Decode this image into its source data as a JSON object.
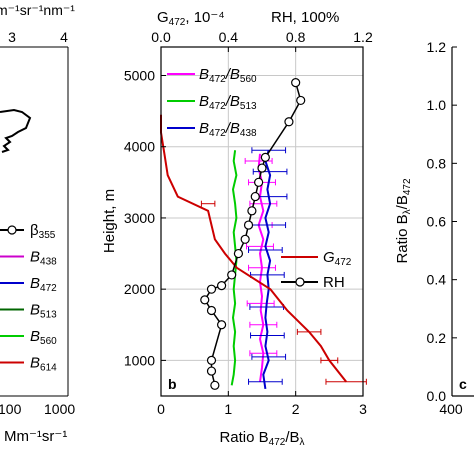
{
  "chart_data": [
    {
      "panel": "left-partial",
      "type": "line",
      "top_axis": {
        "label": "m⁻¹sr⁻¹nm⁻¹",
        "ticks": [
          "3",
          "4"
        ]
      },
      "bottom_axis": {
        "label": "Mm⁻¹sr⁻¹",
        "ticks": [
          "100",
          "1000"
        ]
      },
      "legend": [
        {
          "label": "β",
          "sub": "355",
          "color": "#000000",
          "marker": "circle"
        },
        {
          "label": "B",
          "sub": "438",
          "color": "#cc00cc"
        },
        {
          "label": "B",
          "sub": "472",
          "color": "#0000cc"
        },
        {
          "label": "B",
          "sub": "513",
          "color": "#006600"
        },
        {
          "label": "B",
          "sub": "560",
          "color": "#00cc00"
        },
        {
          "label": "B",
          "sub": "614",
          "color": "#cc0000"
        }
      ]
    },
    {
      "panel": "b",
      "type": "line",
      "panel_label": "b",
      "ylabel": "Height, m",
      "xlabel": {
        "main": "Ratio B",
        "sub1": "472",
        "mid": "/B",
        "sub2": "λ"
      },
      "top_label_left": {
        "main": "G",
        "sub": "472",
        "rest": ", 10⁻⁴"
      },
      "top_label_right": "RH, 100%",
      "xlim": [
        0,
        3
      ],
      "ylim": [
        500,
        5400
      ],
      "xticks": [
        "0",
        "1",
        "2",
        "3"
      ],
      "yticks": [
        "1000",
        "2000",
        "3000",
        "4000",
        "5000"
      ],
      "top_xlim": [
        0,
        1.2
      ],
      "top_xticks": [
        "0.0",
        "0.4",
        "0.8",
        "1.2"
      ],
      "grid": true,
      "legend_top": [
        {
          "label": "B",
          "sub1": "472",
          "mid": "/B",
          "sub2": "560",
          "color": "#ff00ff"
        },
        {
          "label": "B",
          "sub1": "472",
          "mid": "/B",
          "sub2": "513",
          "color": "#00cc00"
        },
        {
          "label": "B",
          "sub1": "472",
          "mid": "/B",
          "sub2": "438",
          "color": "#0000cc"
        }
      ],
      "legend_bottom": [
        {
          "label": "G",
          "sub": "472",
          "color": "#cc0000"
        },
        {
          "label": "RH",
          "color": "#000000",
          "marker": "circle"
        }
      ],
      "series": [
        {
          "name": "B472/B560",
          "color": "#ff00ff",
          "axis": "bottom",
          "points": [
            [
              1.47,
              700
            ],
            [
              1.5,
              900
            ],
            [
              1.52,
              1100
            ],
            [
              1.47,
              1300
            ],
            [
              1.52,
              1500
            ],
            [
              1.48,
              1700
            ],
            [
              1.5,
              1900
            ],
            [
              1.47,
              2100
            ],
            [
              1.5,
              2300
            ],
            [
              1.47,
              2500
            ],
            [
              1.52,
              2700
            ],
            [
              1.45,
              2900
            ],
            [
              1.52,
              3100
            ],
            [
              1.47,
              3300
            ],
            [
              1.5,
              3500
            ],
            [
              1.45,
              3700
            ],
            [
              1.47,
              3900
            ]
          ],
          "error_bars": [
            {
              "y": 3800,
              "err": 0.2
            },
            {
              "y": 3500,
              "err": 0.2
            },
            {
              "y": 3200,
              "err": 0.2
            },
            {
              "y": 2900,
              "err": 0.2
            },
            {
              "y": 2600,
              "err": 0.2
            },
            {
              "y": 2300,
              "err": 0.2
            },
            {
              "y": 1800,
              "err": 0.2
            },
            {
              "y": 1500,
              "err": 0.2
            },
            {
              "y": 1100,
              "err": 0.2
            }
          ]
        },
        {
          "name": "B472/B513",
          "color": "#00cc00",
          "axis": "bottom",
          "points": [
            [
              1.05,
              650
            ],
            [
              1.08,
              800
            ],
            [
              1.1,
              1000
            ],
            [
              1.08,
              1200
            ],
            [
              1.1,
              1400
            ],
            [
              1.07,
              1600
            ],
            [
              1.1,
              1800
            ],
            [
              1.08,
              2000
            ],
            [
              1.1,
              2200
            ],
            [
              1.12,
              2400
            ],
            [
              1.1,
              2600
            ],
            [
              1.08,
              2800
            ],
            [
              1.12,
              3000
            ],
            [
              1.1,
              3200
            ],
            [
              1.07,
              3400
            ],
            [
              1.12,
              3600
            ],
            [
              1.08,
              3800
            ],
            [
              1.1,
              3950
            ]
          ]
        },
        {
          "name": "B472/B438",
          "color": "#0000cc",
          "axis": "bottom",
          "points": [
            [
              1.55,
              600
            ],
            [
              1.52,
              800
            ],
            [
              1.6,
              1000
            ],
            [
              1.55,
              1200
            ],
            [
              1.58,
              1400
            ],
            [
              1.55,
              1600
            ],
            [
              1.57,
              1800
            ],
            [
              1.6,
              2000
            ],
            [
              1.58,
              2200
            ],
            [
              1.62,
              2400
            ],
            [
              1.55,
              2600
            ],
            [
              1.6,
              2800
            ],
            [
              1.55,
              3000
            ],
            [
              1.62,
              3200
            ],
            [
              1.58,
              3400
            ],
            [
              1.62,
              3600
            ],
            [
              1.55,
              3800
            ],
            [
              1.6,
              3950
            ]
          ],
          "error_bars": [
            {
              "y": 3950,
              "err": 0.25
            },
            {
              "y": 3650,
              "err": 0.25
            },
            {
              "y": 3300,
              "err": 0.25
            },
            {
              "y": 2900,
              "err": 0.25
            },
            {
              "y": 2550,
              "err": 0.25
            },
            {
              "y": 2200,
              "err": 0.25
            },
            {
              "y": 1750,
              "err": 0.25
            },
            {
              "y": 1350,
              "err": 0.25
            },
            {
              "y": 1050,
              "err": 0.25
            },
            {
              "y": 700,
              "err": 0.25
            }
          ]
        },
        {
          "name": "G472",
          "color": "#cc0000",
          "axis": "top",
          "points": [
            [
              1.1,
              700
            ],
            [
              1.0,
              1000
            ],
            [
              0.95,
              1200
            ],
            [
              0.88,
              1400
            ],
            [
              0.75,
              1700
            ],
            [
              0.65,
              2000
            ],
            [
              0.45,
              2300
            ],
            [
              0.38,
              2500
            ],
            [
              0.32,
              2700
            ],
            [
              0.3,
              2900
            ],
            [
              0.28,
              3100
            ],
            [
              0.1,
              3300
            ],
            [
              0.04,
              3600
            ],
            [
              0.02,
              3900
            ],
            [
              0.0,
              4200
            ],
            [
              0.0,
              4450
            ]
          ],
          "error_bars": [
            {
              "y": 700,
              "err": 0.12
            },
            {
              "y": 1000,
              "err": 0.05
            },
            {
              "y": 1400,
              "err": 0.07
            },
            {
              "y": 3200,
              "err": 0.04
            }
          ]
        },
        {
          "name": "RH",
          "color": "#000000",
          "axis": "top",
          "marker": "circle",
          "points": [
            [
              0.32,
              650
            ],
            [
              0.3,
              850
            ],
            [
              0.3,
              1000
            ],
            [
              0.36,
              1500
            ],
            [
              0.3,
              1700
            ],
            [
              0.26,
              1850
            ],
            [
              0.3,
              2000
            ],
            [
              0.36,
              2050
            ],
            [
              0.42,
              2200
            ],
            [
              0.46,
              2500
            ],
            [
              0.5,
              2700
            ],
            [
              0.52,
              2900
            ],
            [
              0.54,
              3100
            ],
            [
              0.56,
              3300
            ],
            [
              0.58,
              3500
            ],
            [
              0.6,
              3700
            ],
            [
              0.62,
              3850
            ],
            [
              0.76,
              4350
            ],
            [
              0.83,
              4650
            ],
            [
              0.8,
              4900
            ]
          ]
        }
      ]
    },
    {
      "panel": "c",
      "type": "line",
      "panel_label": "c",
      "ylabel": {
        "main": "Ratio B",
        "sub1": "λ",
        "mid": "/B",
        "sub2": "472"
      },
      "ylim": [
        0,
        1.2
      ],
      "yticks": [
        "0.0",
        "0.2",
        "0.4",
        "0.6",
        "0.8",
        "1.0",
        "1.2"
      ],
      "xticks": [
        "400"
      ]
    }
  ]
}
